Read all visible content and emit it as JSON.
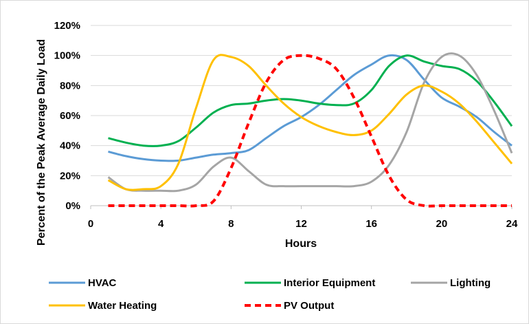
{
  "chart_data": {
    "type": "line",
    "title": "",
    "xlabel": "Hours",
    "ylabel": "Percent of the Peak Average Daily Load",
    "xlim": [
      0,
      24
    ],
    "ylim": [
      0,
      1.2
    ],
    "x_ticks": [
      0,
      4,
      8,
      12,
      16,
      20,
      24
    ],
    "x_tick_labels": [
      "0",
      "4",
      "8",
      "12",
      "16",
      "20",
      "24"
    ],
    "y_ticks": [
      0,
      0.2,
      0.4,
      0.6,
      0.8,
      1.0,
      1.2
    ],
    "y_tick_labels": [
      "0%",
      "20%",
      "40%",
      "60%",
      "80%",
      "100%",
      "120%"
    ],
    "grid": "horizontal",
    "legend_position": "bottom",
    "x": [
      1,
      2,
      3,
      4,
      5,
      6,
      7,
      8,
      9,
      10,
      11,
      12,
      13,
      14,
      15,
      16,
      17,
      18,
      19,
      20,
      21,
      22,
      23,
      24
    ],
    "series": [
      {
        "name": "HVAC",
        "color": "#5b9bd5",
        "dashed": false,
        "values": [
          0.36,
          0.33,
          0.31,
          0.3,
          0.3,
          0.32,
          0.34,
          0.35,
          0.37,
          0.45,
          0.53,
          0.59,
          0.67,
          0.77,
          0.87,
          0.94,
          1.0,
          0.97,
          0.84,
          0.72,
          0.66,
          0.59,
          0.49,
          0.4
        ]
      },
      {
        "name": "Interior Equipment",
        "color": "#00b050",
        "dashed": false,
        "values": [
          0.45,
          0.42,
          0.4,
          0.4,
          0.43,
          0.52,
          0.62,
          0.67,
          0.68,
          0.7,
          0.71,
          0.7,
          0.68,
          0.67,
          0.68,
          0.77,
          0.93,
          1.0,
          0.96,
          0.93,
          0.91,
          0.83,
          0.69,
          0.53
        ]
      },
      {
        "name": "Lighting",
        "color": "#a5a5a5",
        "dashed": false,
        "values": [
          0.19,
          0.11,
          0.1,
          0.1,
          0.1,
          0.14,
          0.26,
          0.32,
          0.23,
          0.14,
          0.13,
          0.13,
          0.13,
          0.13,
          0.13,
          0.16,
          0.27,
          0.49,
          0.82,
          0.99,
          1.0,
          0.87,
          0.63,
          0.35
        ]
      },
      {
        "name": "Water Heating",
        "color": "#ffc000",
        "dashed": false,
        "values": [
          0.17,
          0.11,
          0.11,
          0.13,
          0.28,
          0.65,
          0.97,
          0.99,
          0.93,
          0.8,
          0.68,
          0.59,
          0.53,
          0.49,
          0.47,
          0.5,
          0.61,
          0.74,
          0.8,
          0.76,
          0.68,
          0.56,
          0.42,
          0.28
        ]
      },
      {
        "name": "PV Output",
        "color": "#ff0000",
        "dashed": true,
        "values": [
          0,
          0,
          0,
          0,
          0,
          0,
          0.03,
          0.25,
          0.55,
          0.82,
          0.97,
          1.0,
          0.98,
          0.91,
          0.72,
          0.46,
          0.2,
          0.04,
          0,
          0,
          0,
          0,
          0,
          0
        ]
      }
    ]
  }
}
